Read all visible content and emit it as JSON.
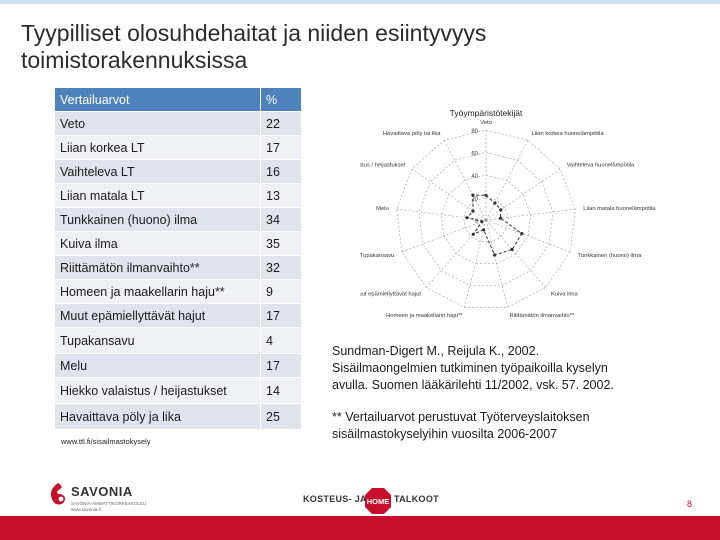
{
  "slide": {
    "title_lines": [
      "Tyypilliset olosuhdehaitat ja niiden esiintyvyys",
      "toimistorakennuksissa"
    ],
    "table": {
      "headers": [
        "Vertailuarvot",
        "%"
      ],
      "rows": [
        [
          "Veto",
          "22"
        ],
        [
          "Liian korkea LT",
          "17"
        ],
        [
          "Vaihteleva LT",
          "16"
        ],
        [
          "Liian matala LT",
          "13"
        ],
        [
          "Tunkkainen (huono) ilma",
          "34"
        ],
        [
          "Kuiva ilma",
          "35"
        ],
        [
          "Riittämätön ilmanvaihto**",
          "32"
        ],
        [
          "Homeen ja maakellarin haju**",
          "9"
        ],
        [
          "Muut epämiellyttävät hajut",
          "17"
        ],
        [
          "Tupakansavu",
          "4"
        ],
        [
          "Melu",
          "17"
        ],
        [
          "Hiekko valaistus / heijastukset",
          "14"
        ],
        [
          "Havaittava pöly ja lika",
          "25"
        ]
      ]
    },
    "source_url": "www.ttl.fi/sisailmastokysely",
    "citation_lines": [
      "Sundman-Digert M., Reijula K., 2002.",
      "Sisäilmaongelmien tutkiminen työpaikoilla kyselyn",
      "avulla. Suomen lääkärilehti 11/2002, vsk. 57. 2002."
    ],
    "note_lines": [
      "** Vertailuarvot perustuvat Työterveyslaitoksen",
      "sisäilmastokyselyihin vuosilta 2006-2007"
    ],
    "page_number": "8"
  },
  "radar": {
    "title": "Työympäristötekijät",
    "ticks": [
      "80",
      "60",
      "40",
      "20",
      "0"
    ],
    "labels": [
      "Veto",
      "Liian korkea huonelämpötila",
      "Vaihteleva huonelämpötila",
      "Liian matala huonelämpötila",
      "Tunkkainen (huono) ilma",
      "Kuiva ilma",
      "Riittämätön ilmanvaihto**",
      "Homeen ja maakellarin haju**",
      "Muut epämiellyttävät hajut",
      "Tupakansavu",
      "Melu",
      "Hiekko valaistus / heijastukset",
      "Havaittava pöly tai lika"
    ]
  },
  "chart_data": {
    "type": "radar",
    "title": "Työympäristötekijät",
    "categories": [
      "Veto",
      "Liian korkea huonelämpötila",
      "Vaihteleva huonelämpötila",
      "Liian matala huonelämpötila",
      "Tunkkainen (huono) ilma",
      "Kuiva ilma",
      "Riittämätön ilmanvaihto**",
      "Homeen ja maakellarin haju**",
      "Muut epämiellyttävät hajut",
      "Tupakansavu",
      "Melu",
      "Hiekko valaistus / heijastukset",
      "Havaittava pöly tai lika"
    ],
    "series": [
      {
        "name": "Vertailuarvot",
        "values": [
          22,
          17,
          16,
          13,
          34,
          35,
          32,
          9,
          17,
          4,
          17,
          14,
          25
        ]
      }
    ],
    "ylim": [
      0,
      80
    ],
    "tick_values": [
      0,
      20,
      40,
      60,
      80
    ]
  },
  "logos": {
    "savonia": {
      "name": "SAVONIA",
      "subtitle_lines": [
        "SAVONIA-AMMATTIKORKEAKOULU",
        "www.savonia.fi"
      ]
    },
    "kampanja": {
      "left": "KOSTEUS- JA",
      "mid": "HOME",
      "right": "TALKOOT"
    }
  },
  "colors": {
    "accent": "#c8102e",
    "table_header": "#4f81bd",
    "row_dark": "#dfe4ec",
    "row_light": "#edf0f5"
  }
}
